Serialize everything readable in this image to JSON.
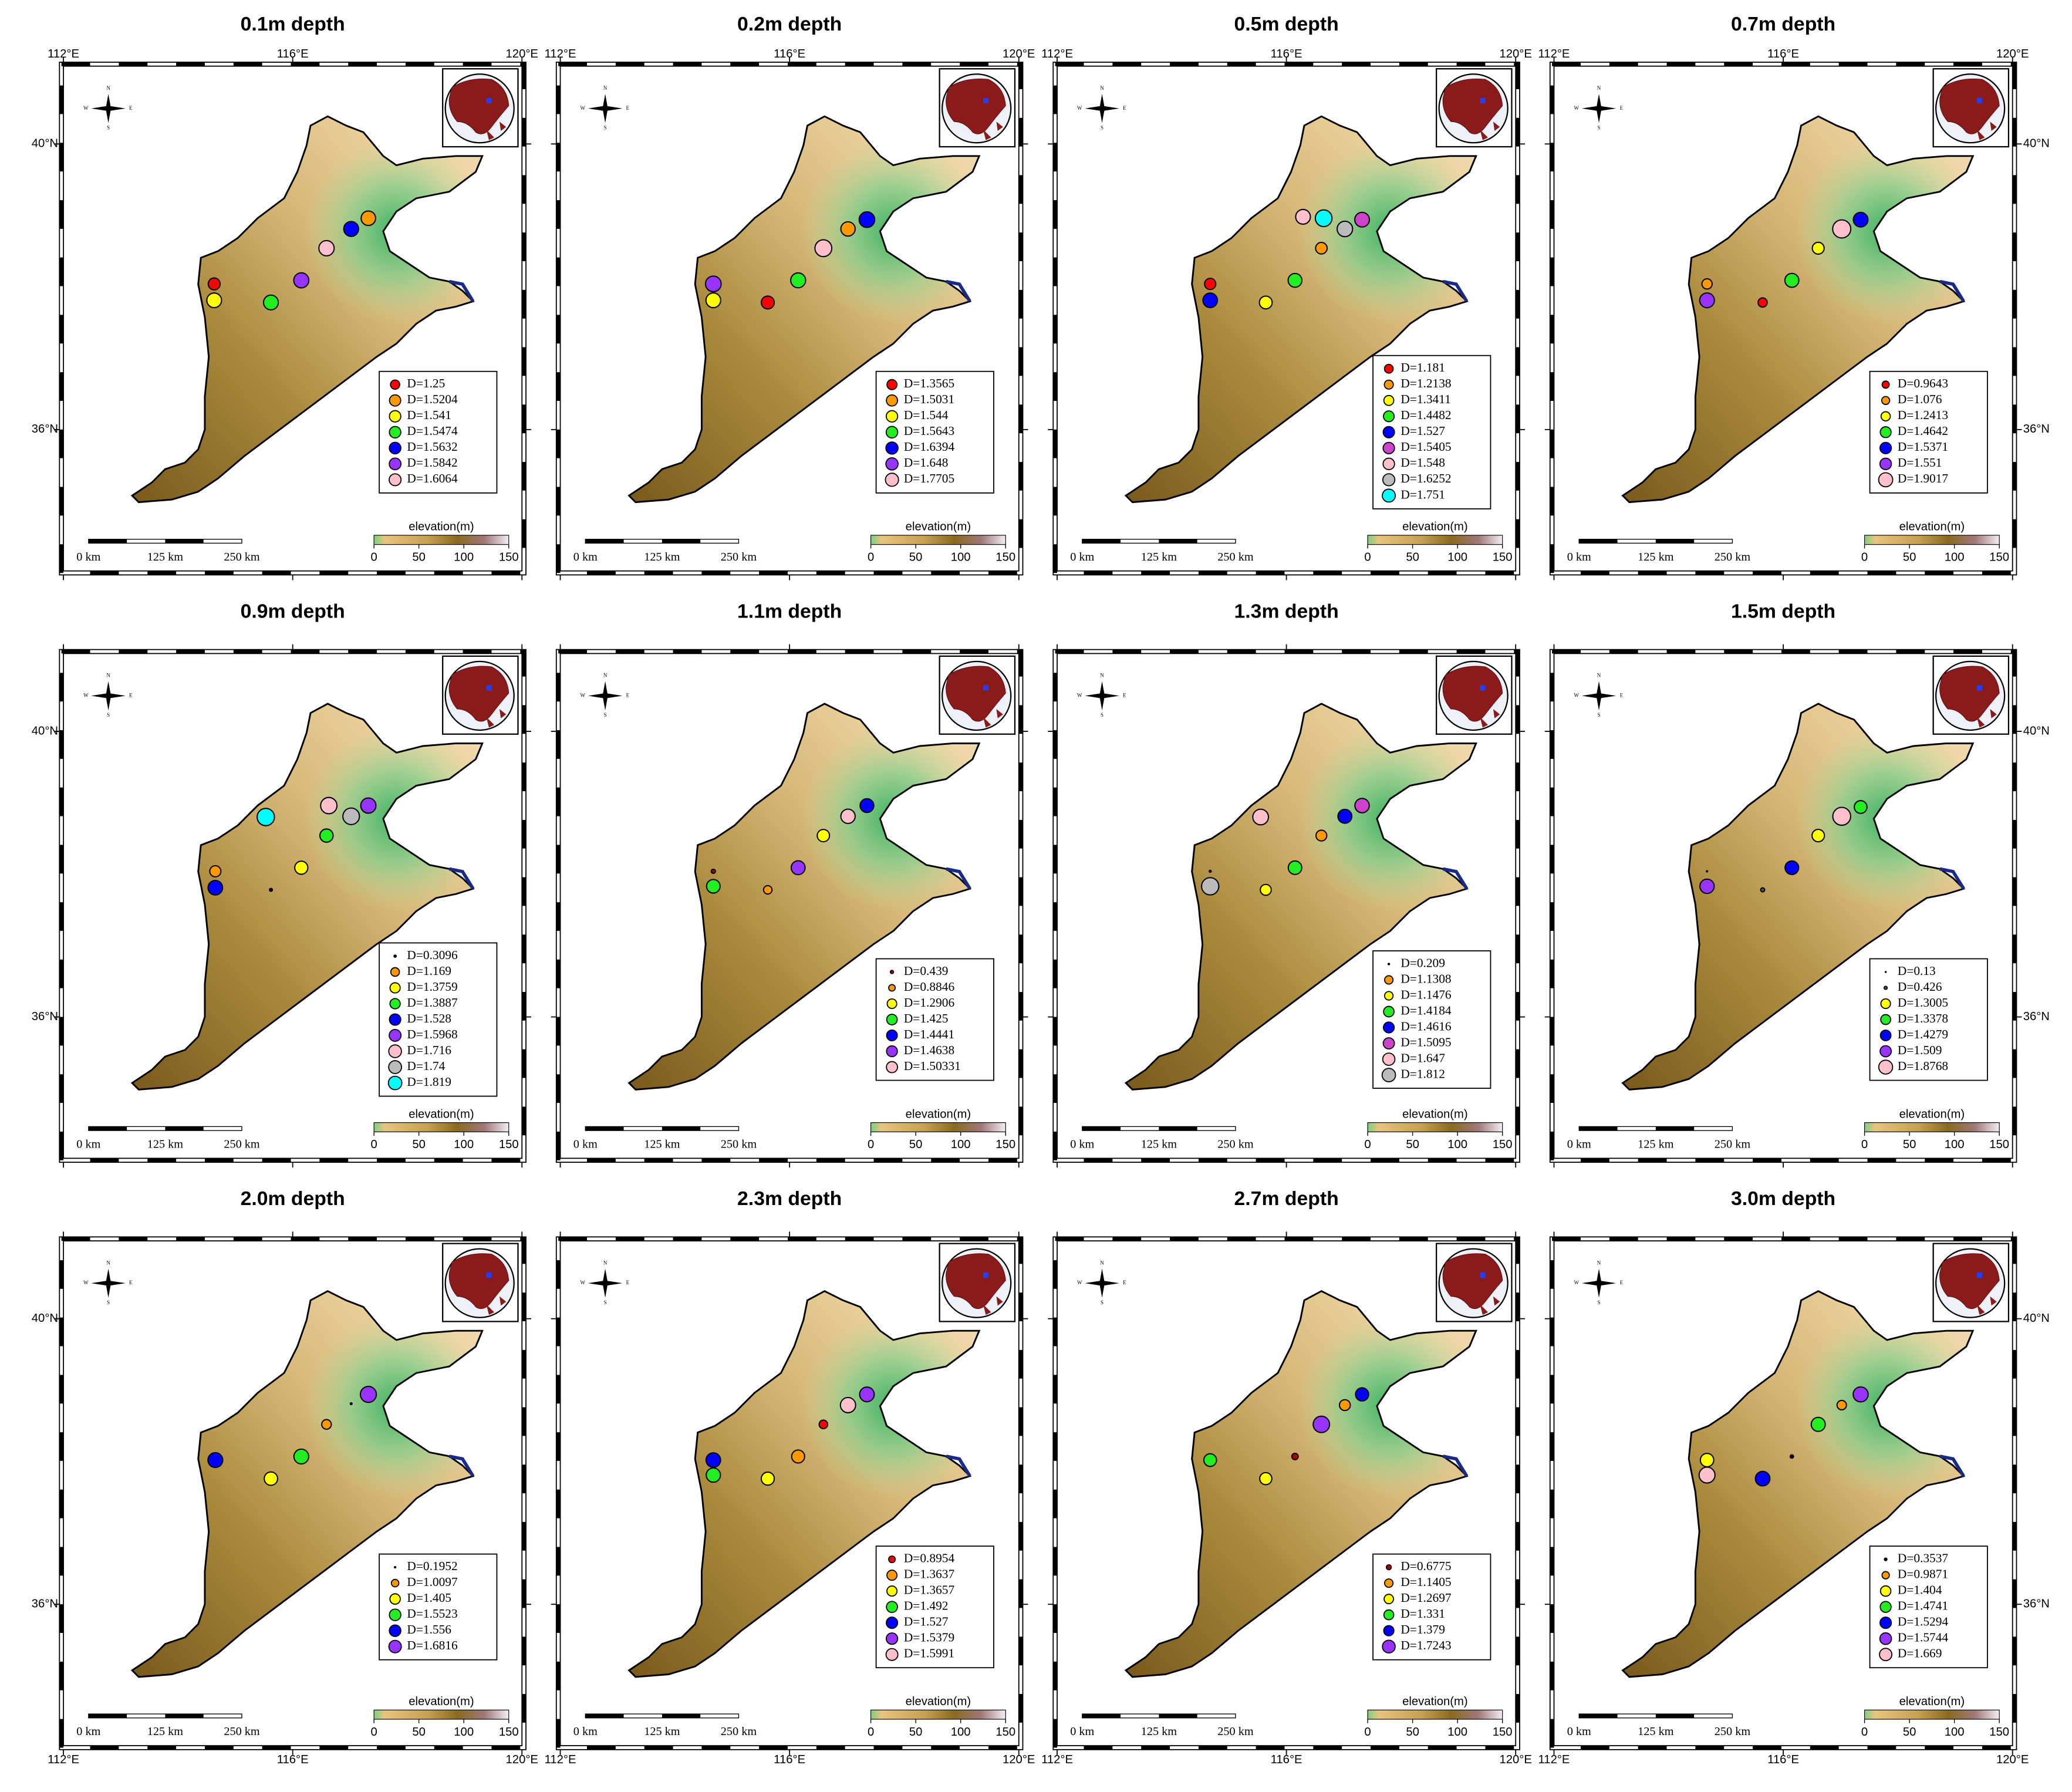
{
  "map": {
    "lonlim": [
      112,
      120
    ],
    "latlim": [
      34.02,
      41.09
    ],
    "lon_ticks": [
      {
        "value": 112,
        "label": "112°E"
      },
      {
        "value": 116,
        "label": "116°E"
      },
      {
        "value": 120,
        "label": "120°E"
      }
    ],
    "lat_ticks": [
      {
        "value": 40,
        "label": "40°N"
      },
      {
        "value": 36,
        "label": "36°N"
      }
    ],
    "scale_bar": [
      "0 km",
      "125 km",
      "250 km"
    ],
    "colorbar": {
      "label": "elevation(m)",
      "lim": [
        0,
        150
      ],
      "ticks": [
        0,
        50,
        100,
        150
      ]
    },
    "compass": [
      "N",
      "S",
      "W",
      "E"
    ]
  },
  "panels": [
    {
      "title": "0.1m depth",
      "labels": [
        "D=1.25",
        "D=1.5204",
        "D=1.541",
        "D=1.5474",
        "D=1.5632",
        "D=1.5842",
        "D=1.6064"
      ],
      "values": [
        1.25,
        1.5204,
        1.541,
        1.5474,
        1.5632,
        1.5842,
        1.6064
      ],
      "colors": [
        "#ff0000",
        "#ff9900",
        "#ffff00",
        "#22ee22",
        "#0000ff",
        "#9933ff",
        "#ffc0cb"
      ],
      "lon": [
        114.63,
        117.32,
        114.63,
        115.62,
        117.02,
        116.15,
        116.59
      ],
      "lat": [
        38.04,
        38.96,
        37.81,
        37.78,
        38.81,
        38.09,
        38.54
      ]
    },
    {
      "title": "0.2m depth",
      "labels": [
        "D=1.3565",
        "D=1.5031",
        "D=1.544",
        "D=1.5643",
        "D=1.6394",
        "D=1.648",
        "D=1.7705"
      ],
      "values": [
        1.3565,
        1.5031,
        1.544,
        1.5643,
        1.6394,
        1.648,
        1.7705
      ],
      "colors": [
        "#ff0000",
        "#ff9900",
        "#ffff00",
        "#22ee22",
        "#0000ff",
        "#9933ff",
        "#ffc0cb"
      ],
      "lon": [
        115.62,
        117.02,
        114.67,
        116.15,
        117.35,
        114.67,
        116.59
      ],
      "lat": [
        37.78,
        38.81,
        37.81,
        38.09,
        38.94,
        38.04,
        38.54
      ]
    },
    {
      "title": "0.5m depth",
      "labels": [
        "D=1.181",
        "D=1.2138",
        "D=1.3411",
        "D=1.4482",
        "D=1.527",
        "D=1.5405",
        "D=1.548",
        "D=1.6252",
        "D=1.751"
      ],
      "values": [
        1.181,
        1.2138,
        1.3411,
        1.4482,
        1.527,
        1.5405,
        1.548,
        1.6252,
        1.751
      ],
      "colors": [
        "#ff0000",
        "#ff9900",
        "#ffff00",
        "#22ee22",
        "#0000ff",
        "#cc44cc",
        "#ffc0cb",
        "#bbbbbb",
        "#00ffff"
      ],
      "lon": [
        114.67,
        116.61,
        115.64,
        116.15,
        114.67,
        117.32,
        116.29,
        117.02,
        116.65
      ],
      "lat": [
        38.04,
        38.54,
        37.78,
        38.09,
        37.81,
        38.94,
        38.98,
        38.81,
        38.96
      ]
    },
    {
      "title": "0.7m depth",
      "labels": [
        "D=0.9643",
        "D=1.076",
        "D=1.2413",
        "D=1.4642",
        "D=1.5371",
        "D=1.551",
        "D=1.9017"
      ],
      "values": [
        0.9643,
        1.076,
        1.2413,
        1.4642,
        1.5371,
        1.551,
        1.9017
      ],
      "colors": [
        "#ff0000",
        "#ff9900",
        "#ffff00",
        "#22ee22",
        "#0000ff",
        "#9933ff",
        "#ffc0cb"
      ],
      "lon": [
        115.64,
        114.67,
        116.61,
        116.15,
        117.35,
        114.67,
        117.02
      ],
      "lat": [
        37.78,
        38.04,
        38.54,
        38.09,
        38.94,
        37.81,
        38.81
      ]
    },
    {
      "title": "0.9m depth",
      "labels": [
        "D=0.3096",
        "D=1.169",
        "D=1.3759",
        "D=1.3887",
        "D=1.528",
        "D=1.5968",
        "D=1.716",
        "D=1.74",
        "D=1.819"
      ],
      "values": [
        0.3096,
        1.169,
        1.3759,
        1.3887,
        1.528,
        1.5968,
        1.716,
        1.74,
        1.819
      ],
      "colors": [
        "#000000",
        "#ff9900",
        "#ffff00",
        "#22ee22",
        "#0000ff",
        "#9933ff",
        "#ffc0cb",
        "#bbbbbb",
        "#00ffff"
      ],
      "lon": [
        115.62,
        114.65,
        116.15,
        116.59,
        114.65,
        117.32,
        116.63,
        117.02,
        115.53
      ],
      "lat": [
        37.78,
        38.04,
        38.09,
        38.54,
        37.81,
        38.96,
        38.96,
        38.81,
        38.8
      ]
    },
    {
      "title": "1.1m depth",
      "labels": [
        "D=0.439",
        "D=0.8846",
        "D=1.2906",
        "D=1.425",
        "D=1.4441",
        "D=1.4638",
        "D=1.50331"
      ],
      "values": [
        0.439,
        0.8846,
        1.2906,
        1.425,
        1.4441,
        1.4638,
        1.50331
      ],
      "colors": [
        "#aa0000",
        "#ff9900",
        "#ffff00",
        "#22ee22",
        "#0000ff",
        "#9933ff",
        "#ffc0cb"
      ],
      "lon": [
        114.67,
        115.62,
        116.59,
        114.67,
        117.35,
        116.15,
        117.02
      ],
      "lat": [
        38.04,
        37.78,
        38.54,
        37.83,
        38.96,
        38.09,
        38.81
      ]
    },
    {
      "title": "1.3m depth",
      "labels": [
        "D=0.209",
        "D=1.1308",
        "D=1.1476",
        "D=1.4184",
        "D=1.4616",
        "D=1.5095",
        "D=1.647",
        "D=1.812"
      ],
      "values": [
        0.209,
        1.1308,
        1.1476,
        1.4184,
        1.4616,
        1.5095,
        1.647,
        1.812
      ],
      "colors": [
        "#aa0000",
        "#ff9900",
        "#ffff00",
        "#22ee22",
        "#0000ff",
        "#cc44cc",
        "#ffc0cb",
        "#bbbbbb"
      ],
      "lon": [
        114.67,
        116.61,
        115.64,
        116.15,
        117.02,
        117.32,
        115.55,
        114.67
      ],
      "lat": [
        38.04,
        38.54,
        37.78,
        38.09,
        38.81,
        38.96,
        38.8,
        37.83
      ]
    },
    {
      "title": "1.5m depth",
      "labels": [
        "D=0.13",
        "D=0.426",
        "D=1.3005",
        "D=1.3378",
        "D=1.4279",
        "D=1.509",
        "D=1.8768"
      ],
      "values": [
        0.13,
        0.426,
        1.3005,
        1.3378,
        1.4279,
        1.509,
        1.8768
      ],
      "colors": [
        "#000000",
        "#555555",
        "#ffff00",
        "#22ee22",
        "#0000ff",
        "#9933ff",
        "#ffc0cb"
      ],
      "lon": [
        114.67,
        115.64,
        116.61,
        117.35,
        116.15,
        114.67,
        117.02
      ],
      "lat": [
        38.04,
        37.78,
        38.54,
        38.94,
        38.09,
        37.83,
        38.81
      ]
    },
    {
      "title": "2.0m depth",
      "labels": [
        "D=0.1952",
        "D=1.0097",
        "D=1.405",
        "D=1.5523",
        "D=1.556",
        "D=1.6816"
      ],
      "values": [
        0.1952,
        1.0097,
        1.405,
        1.5523,
        1.556,
        1.6816
      ],
      "colors": [
        "#000000",
        "#ff9900",
        "#ffff00",
        "#22ee22",
        "#0000ff",
        "#9933ff"
      ],
      "lon": [
        117.02,
        116.59,
        115.62,
        116.15,
        114.65,
        117.32
      ],
      "lat": [
        38.81,
        38.52,
        37.76,
        38.07,
        38.02,
        38.94
      ]
    },
    {
      "title": "2.3m depth",
      "labels": [
        "D=0.8954",
        "D=1.3637",
        "D=1.3657",
        "D=1.492",
        "D=1.527",
        "D=1.5379",
        "D=1.5991"
      ],
      "values": [
        0.8954,
        1.3637,
        1.3657,
        1.492,
        1.527,
        1.5379,
        1.5991
      ],
      "colors": [
        "#ff0000",
        "#ff9900",
        "#ffff00",
        "#22ee22",
        "#0000ff",
        "#9933ff",
        "#ffc0cb"
      ],
      "lon": [
        116.59,
        116.15,
        115.62,
        114.67,
        114.67,
        117.35,
        117.02
      ],
      "lat": [
        38.52,
        38.07,
        37.76,
        37.81,
        38.02,
        38.94,
        38.79
      ]
    },
    {
      "title": "2.7m depth",
      "labels": [
        "D=0.6775",
        "D=1.1405",
        "D=1.2697",
        "D=1.331",
        "D=1.379",
        "D=1.7243"
      ],
      "values": [
        0.6775,
        1.1405,
        1.2697,
        1.331,
        1.379,
        1.7243
      ],
      "colors": [
        "#aa0000",
        "#ff9900",
        "#ffff00",
        "#22ee22",
        "#0000ff",
        "#9933ff"
      ],
      "lon": [
        116.15,
        117.02,
        115.64,
        114.67,
        117.32,
        116.61
      ],
      "lat": [
        38.07,
        38.79,
        37.76,
        38.02,
        38.94,
        38.52
      ]
    },
    {
      "title": "3.0m depth",
      "labels": [
        "D=0.3537",
        "D=0.9871",
        "D=1.404",
        "D=1.4741",
        "D=1.5294",
        "D=1.5744",
        "D=1.669"
      ],
      "values": [
        0.3537,
        0.9871,
        1.404,
        1.4741,
        1.5294,
        1.5744,
        1.669
      ],
      "colors": [
        "#000000",
        "#ff9900",
        "#ffff00",
        "#22ee22",
        "#0000ff",
        "#9933ff",
        "#ffc0cb"
      ],
      "lon": [
        116.15,
        117.02,
        114.67,
        116.61,
        115.64,
        117.35,
        114.67
      ],
      "lat": [
        38.07,
        38.79,
        38.02,
        38.52,
        37.76,
        38.94,
        37.81
      ]
    }
  ]
}
